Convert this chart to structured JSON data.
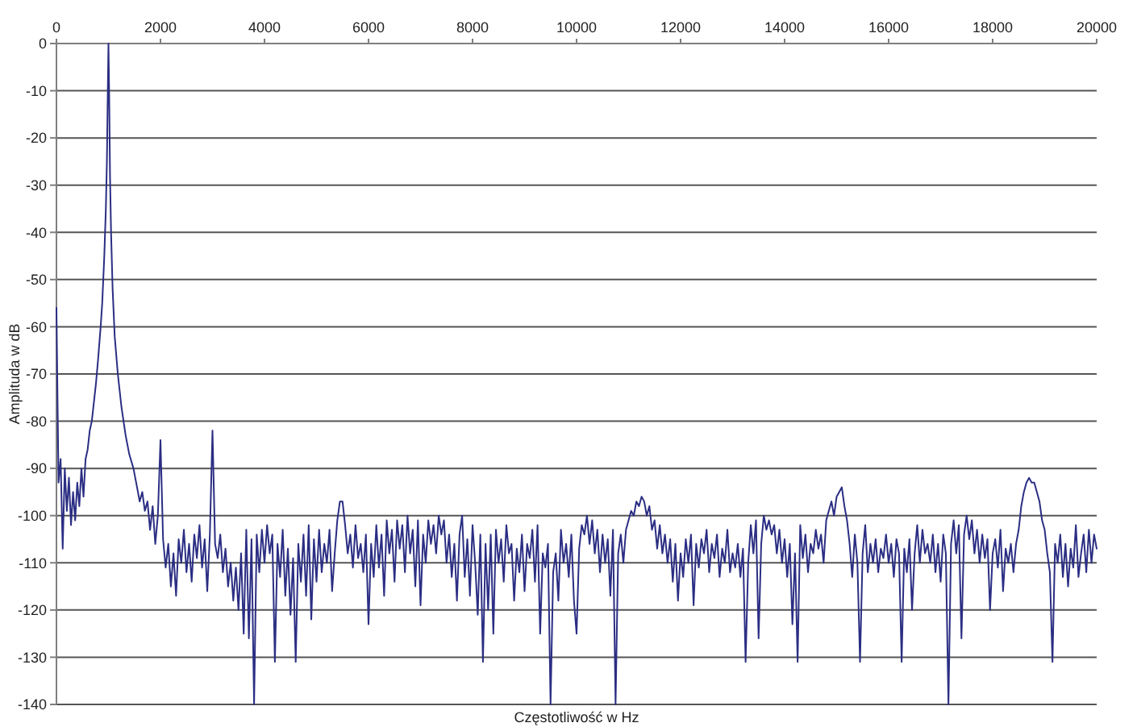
{
  "chart_data": {
    "type": "line",
    "xlabel": "Częstotliwość w Hz",
    "ylabel": "Amplituda w dB",
    "xlim": [
      0,
      20000
    ],
    "xticks": [
      0,
      2000,
      4000,
      6000,
      8000,
      10000,
      12000,
      14000,
      16000,
      18000,
      20000
    ],
    "ylim": [
      -140,
      0
    ],
    "yticks": [
      0,
      -10,
      -20,
      -30,
      -40,
      -50,
      -60,
      -70,
      -80,
      -90,
      -100,
      -110,
      -120,
      -130,
      -140
    ],
    "grid": "y",
    "x": [
      0,
      40,
      80,
      120,
      160,
      200,
      240,
      280,
      320,
      360,
      400,
      440,
      480,
      520,
      560,
      600,
      640,
      680,
      720,
      760,
      800,
      850,
      880,
      920,
      950,
      970,
      985,
      1000,
      1015,
      1030,
      1050,
      1080,
      1120,
      1180,
      1250,
      1330,
      1400,
      1480,
      1550,
      1600,
      1650,
      1700,
      1750,
      1800,
      1850,
      1900,
      1950,
      2000,
      2050,
      2100,
      2150,
      2200,
      2250,
      2300,
      2350,
      2400,
      2450,
      2500,
      2550,
      2600,
      2650,
      2700,
      2750,
      2800,
      2850,
      2900,
      2950,
      3000,
      3050,
      3100,
      3150,
      3200,
      3250,
      3300,
      3350,
      3400,
      3450,
      3500,
      3550,
      3600,
      3650,
      3700,
      3750,
      3800,
      3850,
      3900,
      3950,
      4000,
      4050,
      4100,
      4150,
      4200,
      4250,
      4300,
      4350,
      4400,
      4450,
      4500,
      4550,
      4600,
      4650,
      4700,
      4750,
      4800,
      4850,
      4900,
      4950,
      5000,
      5050,
      5100,
      5150,
      5200,
      5250,
      5300,
      5350,
      5400,
      5450,
      5500,
      5550,
      5600,
      5650,
      5700,
      5750,
      5800,
      5850,
      5900,
      5950,
      6000,
      6050,
      6100,
      6150,
      6200,
      6250,
      6300,
      6350,
      6400,
      6450,
      6500,
      6550,
      6600,
      6650,
      6700,
      6750,
      6800,
      6850,
      6900,
      6950,
      7000,
      7050,
      7100,
      7150,
      7200,
      7250,
      7300,
      7350,
      7400,
      7450,
      7500,
      7550,
      7600,
      7650,
      7700,
      7750,
      7800,
      7850,
      7900,
      7950,
      8000,
      8050,
      8100,
      8150,
      8200,
      8250,
      8300,
      8350,
      8400,
      8450,
      8500,
      8550,
      8600,
      8650,
      8700,
      8750,
      8800,
      8850,
      8900,
      8950,
      9000,
      9050,
      9100,
      9150,
      9200,
      9250,
      9300,
      9350,
      9400,
      9450,
      9500,
      9550,
      9600,
      9650,
      9700,
      9750,
      9800,
      9850,
      9900,
      9950,
      10000,
      10050,
      10100,
      10150,
      10200,
      10250,
      10300,
      10350,
      10400,
      10450,
      10500,
      10550,
      10600,
      10650,
      10700,
      10750,
      10800,
      10850,
      10900,
      10950,
      11000,
      11050,
      11100,
      11150,
      11200,
      11250,
      11300,
      11350,
      11400,
      11450,
      11500,
      11550,
      11600,
      11650,
      11700,
      11750,
      11800,
      11850,
      11900,
      11950,
      12000,
      12050,
      12100,
      12150,
      12200,
      12250,
      12300,
      12350,
      12400,
      12450,
      12500,
      12550,
      12600,
      12650,
      12700,
      12750,
      12800,
      12850,
      12900,
      12950,
      13000,
      13050,
      13100,
      13150,
      13200,
      13250,
      13300,
      13350,
      13400,
      13450,
      13500,
      13550,
      13600,
      13650,
      13700,
      13750,
      13800,
      13850,
      13900,
      13950,
      14000,
      14050,
      14100,
      14150,
      14200,
      14250,
      14300,
      14350,
      14400,
      14450,
      14500,
      14550,
      14600,
      14650,
      14700,
      14750,
      14800,
      14850,
      14900,
      14950,
      15000,
      15050,
      15100,
      15150,
      15200,
      15250,
      15300,
      15350,
      15400,
      15450,
      15500,
      15550,
      15600,
      15650,
      15700,
      15750,
      15800,
      15850,
      15900,
      15950,
      16000,
      16050,
      16100,
      16150,
      16200,
      16250,
      16300,
      16350,
      16400,
      16450,
      16500,
      16550,
      16600,
      16650,
      16700,
      16750,
      16800,
      16850,
      16900,
      16950,
      17000,
      17050,
      17100,
      17150,
      17200,
      17250,
      17300,
      17350,
      17400,
      17450,
      17500,
      17550,
      17600,
      17650,
      17700,
      17750,
      17800,
      17850,
      17900,
      17950,
      18000,
      18050,
      18100,
      18150,
      18200,
      18250,
      18300,
      18350,
      18400,
      18450,
      18500,
      18550,
      18600,
      18650,
      18700,
      18750,
      18800,
      18850,
      18900,
      18950,
      19000,
      19050,
      19100,
      19150,
      19200,
      19250,
      19300,
      19350,
      19400,
      19450,
      19500,
      19550,
      19600,
      19650,
      19700,
      19750,
      19800,
      19850,
      19900,
      19950,
      20000
    ],
    "series": [
      {
        "color": "#2b2e83",
        "values": [
          -56,
          -93,
          -88,
          -107,
          -90,
          -99,
          -92,
          -102,
          -95,
          -101,
          -93,
          -98,
          -90,
          -96,
          -88,
          -86,
          -82,
          -80,
          -76,
          -72,
          -67,
          -60,
          -55,
          -45,
          -35,
          -25,
          -12,
          0,
          -12,
          -28,
          -40,
          -52,
          -62,
          -70,
          -77,
          -83,
          -87,
          -90,
          -94,
          -97,
          -95,
          -99,
          -97,
          -103,
          -98,
          -106,
          -100,
          -84,
          -105,
          -111,
          -106,
          -115,
          -108,
          -117,
          -105,
          -110,
          -103,
          -112,
          -106,
          -114,
          -104,
          -109,
          -102,
          -111,
          -105,
          -116,
          -104,
          -82,
          -106,
          -109,
          -104,
          -112,
          -107,
          -115,
          -110,
          -118,
          -111,
          -120,
          -108,
          -125,
          -103,
          -126,
          -105,
          -140,
          -104,
          -112,
          -103,
          -110,
          -102,
          -108,
          -104,
          -131,
          -106,
          -113,
          -103,
          -117,
          -107,
          -121,
          -109,
          -131,
          -106,
          -114,
          -104,
          -117,
          -102,
          -122,
          -105,
          -114,
          -103,
          -112,
          -106,
          -110,
          -103,
          -116,
          -108,
          -101,
          -97,
          -97,
          -102,
          -108,
          -104,
          -111,
          -102,
          -109,
          -106,
          -112,
          -104,
          -123,
          -106,
          -113,
          -102,
          -111,
          -104,
          -117,
          -101,
          -108,
          -103,
          -114,
          -101,
          -107,
          -102,
          -112,
          -100,
          -108,
          -103,
          -115,
          -101,
          -119,
          -104,
          -110,
          -101,
          -106,
          -102,
          -108,
          -100,
          -104,
          -101,
          -110,
          -104,
          -113,
          -106,
          -118,
          -104,
          -100,
          -113,
          -105,
          -117,
          -102,
          -110,
          -121,
          -104,
          -131,
          -106,
          -120,
          -104,
          -125,
          -103,
          -110,
          -105,
          -114,
          -102,
          -108,
          -106,
          -118,
          -107,
          -112,
          -104,
          -116,
          -106,
          -109,
          -103,
          -114,
          -102,
          -125,
          -108,
          -111,
          -106,
          -140,
          -112,
          -108,
          -118,
          -103,
          -110,
          -106,
          -113,
          -104,
          -118,
          -125,
          -107,
          -102,
          -104,
          -100,
          -106,
          -101,
          -108,
          -103,
          -112,
          -104,
          -110,
          -105,
          -117,
          -103,
          -140,
          -108,
          -104,
          -110,
          -103,
          -101,
          -99,
          -100,
          -97,
          -98,
          -96,
          -97,
          -100,
          -98,
          -103,
          -101,
          -107,
          -102,
          -108,
          -104,
          -110,
          -105,
          -114,
          -106,
          -118,
          -108,
          -113,
          -105,
          -110,
          -104,
          -119,
          -106,
          -111,
          -105,
          -108,
          -103,
          -112,
          -106,
          -109,
          -104,
          -113,
          -107,
          -110,
          -103,
          -112,
          -108,
          -111,
          -106,
          -113,
          -107,
          -131,
          -110,
          -102,
          -108,
          -101,
          -126,
          -106,
          -100,
          -103,
          -101,
          -104,
          -102,
          -108,
          -103,
          -110,
          -105,
          -113,
          -106,
          -123,
          -108,
          -131,
          -102,
          -109,
          -104,
          -112,
          -106,
          -108,
          -103,
          -107,
          -104,
          -110,
          -101,
          -99,
          -97,
          -100,
          -96,
          -95,
          -94,
          -98,
          -101,
          -106,
          -113,
          -104,
          -110,
          -131,
          -108,
          -102,
          -112,
          -106,
          -110,
          -105,
          -112,
          -107,
          -109,
          -104,
          -110,
          -106,
          -113,
          -105,
          -108,
          -131,
          -107,
          -112,
          -105,
          -120,
          -108,
          -102,
          -110,
          -103,
          -108,
          -106,
          -110,
          -104,
          -112,
          -106,
          -114,
          -104,
          -108,
          -140,
          -106,
          -101,
          -108,
          -102,
          -126,
          -104,
          -100,
          -105,
          -101,
          -108,
          -103,
          -110,
          -104,
          -109,
          -105,
          -120,
          -108,
          -105,
          -111,
          -103,
          -116,
          -107,
          -110,
          -106,
          -112,
          -106,
          -103,
          -98,
          -95,
          -93,
          -92,
          -93,
          -93,
          -95,
          -97,
          -101,
          -103,
          -108,
          -112,
          -131,
          -106,
          -110,
          -104,
          -113,
          -106,
          -115,
          -107,
          -111,
          -102,
          -113,
          -108,
          -104,
          -112,
          -103,
          -110,
          -104,
          -107
        ]
      }
    ]
  }
}
